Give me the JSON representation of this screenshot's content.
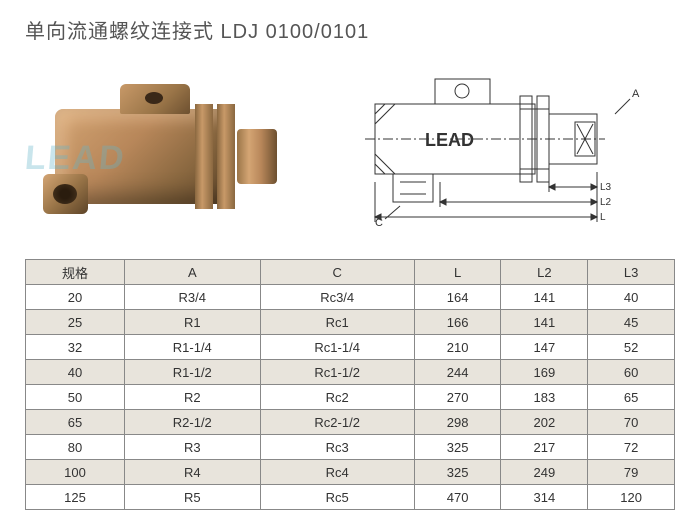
{
  "title": "单向流通螺纹连接式  LDJ 0100/0101",
  "watermark": "LEAD",
  "diagram_label": "LEAD",
  "dim_labels": {
    "A": "A",
    "C": "C",
    "L": "L",
    "L2": "L2",
    "L3": "L3"
  },
  "table": {
    "headers": [
      "规格",
      "A",
      "C",
      "L",
      "L2",
      "L3"
    ],
    "header_bg": "#e8e4dc",
    "row_bg_even": "#e8e4dc",
    "row_bg_odd": "#ffffff",
    "border_color": "#888888",
    "rows": [
      [
        "20",
        "R3/4",
        "Rc3/4",
        "164",
        "141",
        "40"
      ],
      [
        "25",
        "R1",
        "Rc1",
        "166",
        "141",
        "45"
      ],
      [
        "32",
        "R1-1/4",
        "Rc1-1/4",
        "210",
        "147",
        "52"
      ],
      [
        "40",
        "R1-1/2",
        "Rc1-1/2",
        "244",
        "169",
        "60"
      ],
      [
        "50",
        "R2",
        "Rc2",
        "270",
        "183",
        "65"
      ],
      [
        "65",
        "R2-1/2",
        "Rc2-1/2",
        "298",
        "202",
        "70"
      ],
      [
        "80",
        "R3",
        "Rc3",
        "325",
        "217",
        "72"
      ],
      [
        "100",
        "R4",
        "Rc4",
        "325",
        "249",
        "79"
      ],
      [
        "125",
        "R5",
        "Rc5",
        "470",
        "314",
        "120"
      ]
    ]
  }
}
